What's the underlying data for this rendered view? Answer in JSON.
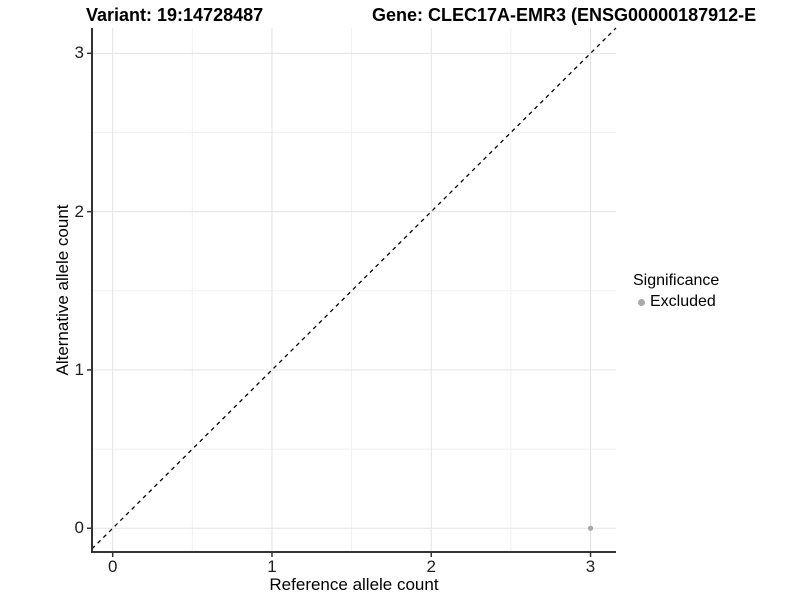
{
  "header": {
    "variant_title": "Variant: 19:14728487",
    "gene_title": "Gene: CLEC17A-EMR3 (ENSG00000187912-E"
  },
  "chart_data": {
    "type": "scatter",
    "xlabel": "Reference allele count",
    "ylabel": "Alternative allele count",
    "x_ticks": [
      0,
      1,
      2,
      3
    ],
    "y_ticks": [
      0,
      1,
      2,
      3
    ],
    "xlim": [
      -0.13,
      3.16
    ],
    "ylim": [
      -0.15,
      3.16
    ],
    "grid": "major+minor",
    "reference_line": {
      "slope": 1,
      "intercept": 0,
      "style": "dashed",
      "color": "#000000"
    },
    "series": [
      {
        "name": "Excluded",
        "color": "#a9a9a9",
        "points": [
          {
            "x": 3,
            "y": 0
          }
        ]
      }
    ],
    "legend": {
      "title": "Significance",
      "position": "right",
      "items": [
        {
          "label": "Excluded",
          "color": "#a9a9a9"
        }
      ]
    }
  }
}
